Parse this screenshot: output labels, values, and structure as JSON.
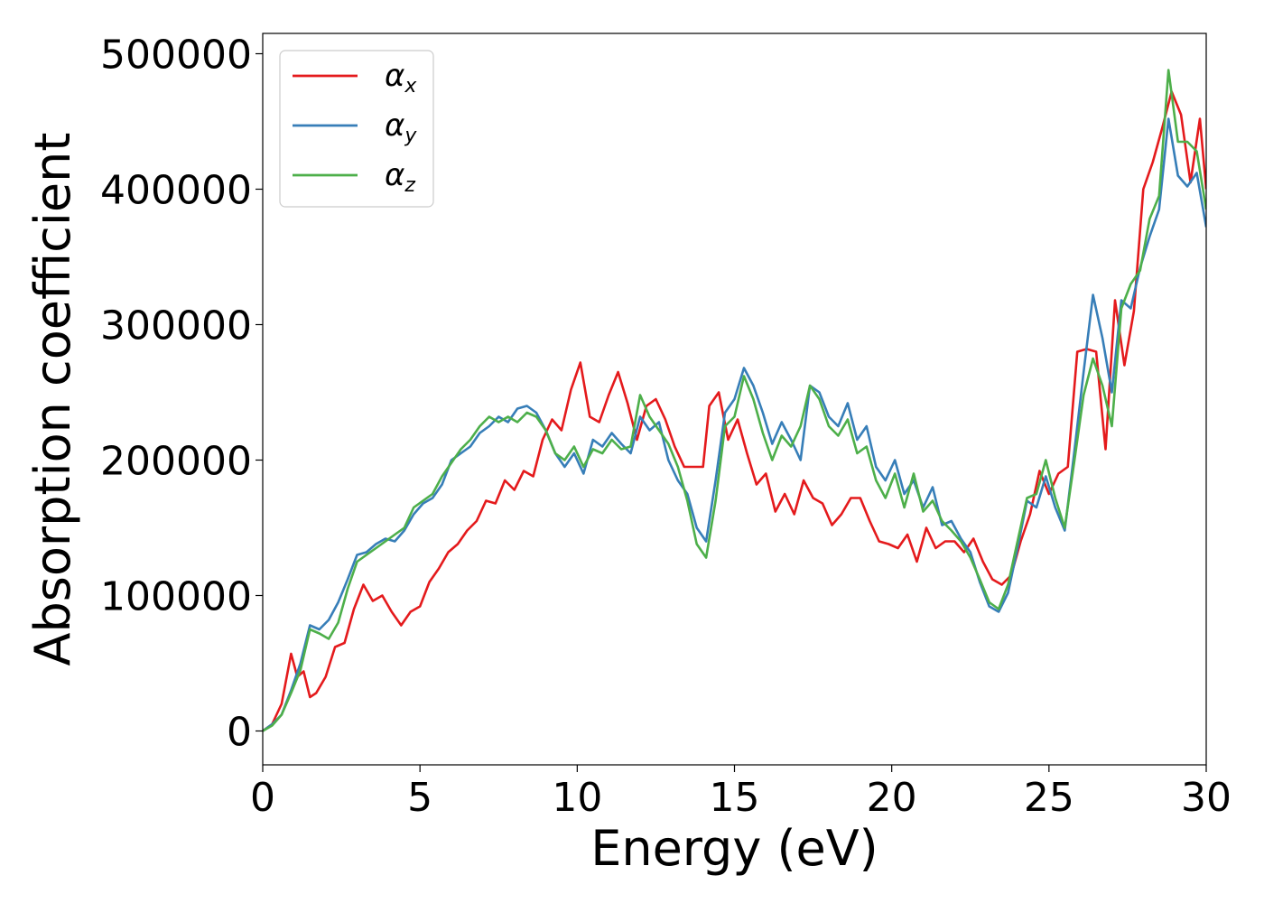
{
  "chart_data": {
    "type": "line",
    "title": "",
    "xlabel": "Energy (eV)",
    "ylabel": "Absorption coefficient",
    "xlim": [
      0,
      30
    ],
    "ylim": [
      -25000,
      515000
    ],
    "xticks": [
      0,
      5,
      10,
      15,
      20,
      25,
      30
    ],
    "yticks": [
      0,
      100000,
      200000,
      300000,
      400000,
      500000
    ],
    "grid": false,
    "legend_position": "top-left",
    "series": [
      {
        "name": "α_x",
        "legend_base": "α",
        "legend_sub": "x",
        "color": "#e41a1c",
        "x": [
          0,
          0.3,
          0.6,
          0.9,
          1.1,
          1.3,
          1.5,
          1.7,
          2.0,
          2.3,
          2.6,
          2.9,
          3.2,
          3.5,
          3.8,
          4.1,
          4.4,
          4.7,
          5.0,
          5.3,
          5.6,
          5.9,
          6.2,
          6.5,
          6.8,
          7.1,
          7.4,
          7.7,
          8.0,
          8.3,
          8.6,
          8.9,
          9.2,
          9.5,
          9.8,
          10.1,
          10.4,
          10.7,
          11.0,
          11.3,
          11.6,
          11.9,
          12.2,
          12.5,
          12.8,
          13.1,
          13.4,
          13.7,
          14.0,
          14.2,
          14.5,
          14.8,
          15.1,
          15.4,
          15.7,
          16.0,
          16.3,
          16.6,
          16.9,
          17.2,
          17.5,
          17.8,
          18.1,
          18.4,
          18.7,
          19.0,
          19.3,
          19.6,
          19.9,
          20.2,
          20.5,
          20.8,
          21.1,
          21.4,
          21.7,
          22.0,
          22.3,
          22.6,
          22.9,
          23.2,
          23.5,
          23.8,
          24.1,
          24.4,
          24.7,
          25.0,
          25.3,
          25.6,
          25.9,
          26.2,
          26.5,
          26.8,
          27.1,
          27.4,
          27.7,
          28.0,
          28.3,
          28.6,
          28.9,
          29.2,
          29.5,
          29.8,
          30.0
        ],
        "y": [
          0,
          5000,
          20000,
          57000,
          40000,
          44000,
          25000,
          28000,
          40000,
          62000,
          65000,
          90000,
          108000,
          96000,
          100000,
          88000,
          78000,
          88000,
          92000,
          110000,
          120000,
          132000,
          138000,
          148000,
          155000,
          170000,
          168000,
          185000,
          178000,
          192000,
          188000,
          215000,
          230000,
          222000,
          252000,
          272000,
          232000,
          228000,
          248000,
          265000,
          242000,
          215000,
          240000,
          245000,
          230000,
          210000,
          195000,
          195000,
          195000,
          240000,
          250000,
          215000,
          230000,
          205000,
          182000,
          190000,
          162000,
          175000,
          160000,
          185000,
          172000,
          168000,
          152000,
          160000,
          172000,
          172000,
          155000,
          140000,
          138000,
          135000,
          145000,
          125000,
          150000,
          135000,
          140000,
          140000,
          132000,
          142000,
          125000,
          112000,
          108000,
          115000,
          140000,
          160000,
          192000,
          175000,
          190000,
          195000,
          280000,
          282000,
          280000,
          208000,
          318000,
          270000,
          310000,
          400000,
          420000,
          445000,
          472000,
          455000,
          405000,
          452000,
          400000
        ]
      },
      {
        "name": "α_y",
        "legend_base": "α",
        "legend_sub": "y",
        "color": "#377eb8",
        "x": [
          0,
          0.3,
          0.6,
          0.9,
          1.2,
          1.5,
          1.8,
          2.1,
          2.4,
          2.7,
          3.0,
          3.3,
          3.6,
          3.9,
          4.2,
          4.5,
          4.8,
          5.1,
          5.4,
          5.7,
          6.0,
          6.3,
          6.6,
          6.9,
          7.2,
          7.5,
          7.8,
          8.1,
          8.4,
          8.7,
          9.0,
          9.3,
          9.6,
          9.9,
          10.2,
          10.5,
          10.8,
          11.1,
          11.4,
          11.7,
          12.0,
          12.3,
          12.6,
          12.9,
          13.2,
          13.5,
          13.8,
          14.1,
          14.4,
          14.7,
          15.0,
          15.3,
          15.6,
          15.9,
          16.2,
          16.5,
          16.8,
          17.1,
          17.4,
          17.7,
          18.0,
          18.3,
          18.6,
          18.9,
          19.2,
          19.5,
          19.8,
          20.1,
          20.4,
          20.7,
          21.0,
          21.3,
          21.6,
          21.9,
          22.2,
          22.5,
          22.8,
          23.1,
          23.4,
          23.7,
          24.0,
          24.3,
          24.6,
          24.9,
          25.2,
          25.5,
          25.8,
          26.1,
          26.4,
          26.7,
          27.0,
          27.3,
          27.6,
          27.9,
          28.2,
          28.5,
          28.8,
          29.1,
          29.4,
          29.7,
          30.0
        ],
        "y": [
          0,
          5000,
          12000,
          30000,
          50000,
          78000,
          75000,
          82000,
          95000,
          112000,
          130000,
          132000,
          138000,
          142000,
          140000,
          148000,
          160000,
          168000,
          172000,
          182000,
          200000,
          205000,
          210000,
          220000,
          225000,
          232000,
          228000,
          238000,
          240000,
          235000,
          222000,
          205000,
          195000,
          205000,
          190000,
          215000,
          210000,
          220000,
          212000,
          205000,
          232000,
          222000,
          228000,
          200000,
          185000,
          175000,
          150000,
          140000,
          185000,
          235000,
          245000,
          268000,
          255000,
          235000,
          212000,
          228000,
          215000,
          200000,
          255000,
          250000,
          232000,
          225000,
          242000,
          215000,
          225000,
          195000,
          185000,
          200000,
          175000,
          185000,
          165000,
          180000,
          152000,
          155000,
          142000,
          132000,
          110000,
          92000,
          88000,
          102000,
          135000,
          170000,
          165000,
          188000,
          165000,
          148000,
          205000,
          265000,
          322000,
          290000,
          250000,
          318000,
          312000,
          342000,
          365000,
          385000,
          452000,
          410000,
          402000,
          412000,
          372000
        ]
      },
      {
        "name": "α_z",
        "legend_base": "α",
        "legend_sub": "z",
        "color": "#4daf4a",
        "x": [
          0,
          0.3,
          0.6,
          0.9,
          1.2,
          1.5,
          1.8,
          2.1,
          2.4,
          2.7,
          3.0,
          3.3,
          3.6,
          3.9,
          4.2,
          4.5,
          4.8,
          5.1,
          5.4,
          5.7,
          6.0,
          6.3,
          6.6,
          6.9,
          7.2,
          7.5,
          7.8,
          8.1,
          8.4,
          8.7,
          9.0,
          9.3,
          9.6,
          9.9,
          10.2,
          10.5,
          10.8,
          11.1,
          11.4,
          11.7,
          12.0,
          12.3,
          12.6,
          12.9,
          13.2,
          13.5,
          13.8,
          14.1,
          14.4,
          14.7,
          15.0,
          15.3,
          15.6,
          15.9,
          16.2,
          16.5,
          16.8,
          17.1,
          17.4,
          17.7,
          18.0,
          18.3,
          18.6,
          18.9,
          19.2,
          19.5,
          19.8,
          20.1,
          20.4,
          20.7,
          21.0,
          21.3,
          21.6,
          21.9,
          22.2,
          22.5,
          22.8,
          23.1,
          23.4,
          23.7,
          24.0,
          24.3,
          24.6,
          24.9,
          25.2,
          25.5,
          25.8,
          26.1,
          26.4,
          26.7,
          27.0,
          27.3,
          27.6,
          27.9,
          28.2,
          28.5,
          28.8,
          29.1,
          29.4,
          29.7,
          30.0
        ],
        "y": [
          0,
          4000,
          12000,
          28000,
          45000,
          75000,
          72000,
          68000,
          80000,
          105000,
          125000,
          130000,
          135000,
          140000,
          145000,
          150000,
          165000,
          170000,
          175000,
          188000,
          198000,
          208000,
          215000,
          225000,
          232000,
          228000,
          232000,
          228000,
          235000,
          232000,
          222000,
          205000,
          200000,
          210000,
          195000,
          208000,
          205000,
          215000,
          208000,
          210000,
          248000,
          232000,
          222000,
          212000,
          195000,
          170000,
          138000,
          128000,
          170000,
          225000,
          232000,
          262000,
          245000,
          220000,
          200000,
          218000,
          210000,
          225000,
          255000,
          245000,
          225000,
          218000,
          230000,
          205000,
          210000,
          185000,
          172000,
          190000,
          165000,
          190000,
          162000,
          170000,
          155000,
          148000,
          140000,
          128000,
          112000,
          95000,
          90000,
          108000,
          140000,
          172000,
          175000,
          200000,
          172000,
          150000,
          198000,
          248000,
          275000,
          255000,
          225000,
          312000,
          330000,
          340000,
          378000,
          395000,
          488000,
          435000,
          435000,
          428000,
          385000
        ]
      }
    ]
  }
}
